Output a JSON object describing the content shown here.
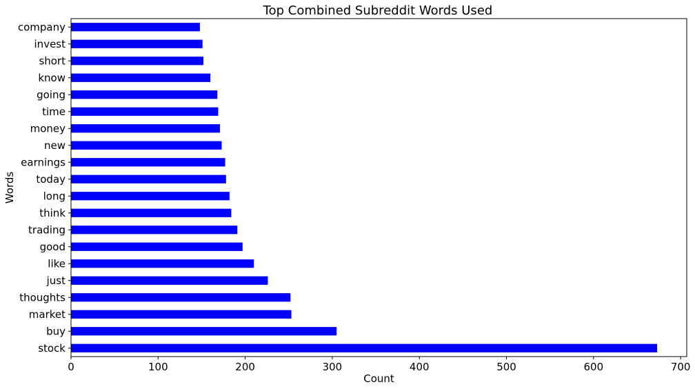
{
  "chart_data": {
    "type": "bar",
    "orientation": "horizontal",
    "title": "Top Combined Subreddit Words Used",
    "xlabel": "Count",
    "ylabel": "Words",
    "xlim": [
      0,
      707
    ],
    "xticks": [
      0,
      100,
      200,
      300,
      400,
      500,
      600,
      700
    ],
    "grid": false,
    "bar_color": "#0000ff",
    "categories": [
      "stock",
      "buy",
      "market",
      "thoughts",
      "just",
      "like",
      "good",
      "trading",
      "think",
      "long",
      "today",
      "earnings",
      "new",
      "money",
      "time",
      "going",
      "know",
      "short",
      "invest",
      "company"
    ],
    "values": [
      673,
      305,
      253,
      252,
      226,
      210,
      197,
      191,
      184,
      182,
      178,
      177,
      173,
      171,
      169,
      168,
      160,
      152,
      151,
      148
    ]
  }
}
